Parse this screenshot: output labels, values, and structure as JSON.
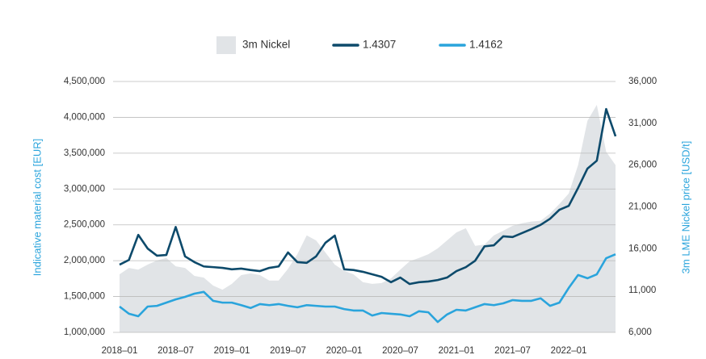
{
  "chart_data": {
    "type": "line",
    "y_label": "Indicative material cost [EUR]",
    "y2_label": "3m LME Nickel price [USD/t]",
    "categories": [
      "2018–01",
      null,
      null,
      null,
      null,
      null,
      "2018–07",
      null,
      null,
      null,
      null,
      null,
      "2019–01",
      null,
      null,
      null,
      null,
      null,
      "2019–07",
      null,
      null,
      null,
      null,
      null,
      "2020–01",
      null,
      null,
      null,
      null,
      null,
      "2020–07",
      null,
      null,
      null,
      null,
      null,
      "2021–01",
      null,
      null,
      null,
      null,
      null,
      "2021–07",
      null,
      null,
      null,
      null,
      null,
      "2022–01",
      null,
      null,
      null,
      null,
      null
    ],
    "series": [
      {
        "name": "3m Nickel",
        "type": "area",
        "axis": "y2",
        "color": "#e1e4e7",
        "values": [
          12950,
          13700,
          13500,
          14100,
          14600,
          14900,
          13900,
          13700,
          12750,
          12550,
          11600,
          11100,
          11800,
          12850,
          13050,
          12850,
          12200,
          12200,
          13600,
          15350,
          17600,
          17000,
          15550,
          14100,
          13350,
          12950,
          12000,
          11800,
          11900,
          12450,
          13500,
          14500,
          14900,
          15350,
          16050,
          17000,
          17950,
          18450,
          16350,
          16500,
          17600,
          18150,
          18750,
          19050,
          19250,
          19350,
          20200,
          21350,
          22600,
          26000,
          31300,
          33200,
          27600,
          26000
        ]
      },
      {
        "name": "1.4307",
        "type": "line",
        "color": "#0d4a6b",
        "values": [
          1945000,
          2010000,
          2360000,
          2170000,
          2070000,
          2080000,
          2470000,
          2060000,
          1980000,
          1920000,
          1910000,
          1900000,
          1880000,
          1890000,
          1870000,
          1855000,
          1900000,
          1920000,
          2115000,
          1980000,
          1970000,
          2060000,
          2250000,
          2350000,
          1880000,
          1870000,
          1845000,
          1810000,
          1775000,
          1700000,
          1765000,
          1675000,
          1700000,
          1710000,
          1730000,
          1765000,
          1855000,
          1910000,
          2000000,
          2200000,
          2215000,
          2340000,
          2330000,
          2385000,
          2440000,
          2500000,
          2585000,
          2710000,
          2765000,
          3015000,
          3285000,
          3395000,
          4115000,
          3735000
        ]
      },
      {
        "name": "1.4162",
        "type": "line",
        "color": "#2aa4dc",
        "values": [
          1360000,
          1260000,
          1225000,
          1360000,
          1370000,
          1415000,
          1460000,
          1495000,
          1540000,
          1565000,
          1440000,
          1415000,
          1415000,
          1380000,
          1340000,
          1395000,
          1380000,
          1395000,
          1370000,
          1350000,
          1380000,
          1370000,
          1360000,
          1360000,
          1325000,
          1305000,
          1305000,
          1235000,
          1270000,
          1260000,
          1250000,
          1225000,
          1295000,
          1280000,
          1145000,
          1250000,
          1315000,
          1305000,
          1350000,
          1395000,
          1380000,
          1405000,
          1450000,
          1440000,
          1440000,
          1475000,
          1370000,
          1415000,
          1620000,
          1800000,
          1755000,
          1810000,
          2035000,
          2090000
        ]
      }
    ],
    "ylim": [
      1000000,
      4500000
    ],
    "yticks": [
      {
        "value": 1000000,
        "label": "1,000,000"
      },
      {
        "value": 1500000,
        "label": "1,500,000"
      },
      {
        "value": 2000000,
        "label": "2,000,000"
      },
      {
        "value": 2500000,
        "label": "2,500,000"
      },
      {
        "value": 3000000,
        "label": "3,000,000"
      },
      {
        "value": 3500000,
        "label": "3,500,000"
      },
      {
        "value": 4000000,
        "label": "4,000,000"
      },
      {
        "value": 4500000,
        "label": "4,500,000"
      }
    ],
    "y2lim": [
      6000,
      36000
    ],
    "y2ticks": [
      {
        "value": 6000,
        "label": "6,000"
      },
      {
        "value": 11000,
        "label": "11,000"
      },
      {
        "value": 16000,
        "label": "16,000"
      },
      {
        "value": 21000,
        "label": "21,000"
      },
      {
        "value": 26000,
        "label": "26,000"
      },
      {
        "value": 31000,
        "label": "31,000"
      },
      {
        "value": 36000,
        "label": "36,000"
      }
    ],
    "grid": true,
    "legend": "top"
  }
}
